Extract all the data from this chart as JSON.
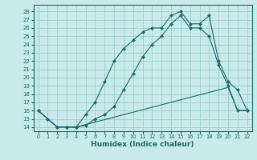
{
  "xlabel": "Humidex (Indice chaleur)",
  "background_color": "#c8eaea",
  "grid_color": "#9ecece",
  "line_color": "#1a6b6b",
  "xlim": [
    -0.5,
    22.5
  ],
  "ylim": [
    13.5,
    28.8
  ],
  "xticks": [
    0,
    1,
    2,
    3,
    4,
    5,
    6,
    7,
    8,
    9,
    10,
    11,
    12,
    13,
    14,
    15,
    16,
    17,
    18,
    19,
    20,
    21,
    22
  ],
  "yticks": [
    14,
    15,
    16,
    17,
    18,
    19,
    20,
    21,
    22,
    23,
    24,
    25,
    26,
    27,
    28
  ],
  "line1_x": [
    0,
    1,
    2,
    3,
    4,
    5,
    6,
    7,
    8,
    9,
    10,
    11,
    12,
    13,
    14,
    15,
    16,
    17,
    18,
    19,
    20,
    21,
    22
  ],
  "line1_y": [
    16,
    15,
    14,
    14,
    14,
    14.3,
    14.6,
    14.9,
    15.2,
    15.5,
    15.8,
    16.1,
    16.4,
    16.7,
    17.0,
    17.3,
    17.6,
    17.9,
    18.2,
    18.5,
    18.8,
    16,
    16
  ],
  "line2_x": [
    0,
    1,
    2,
    3,
    4,
    5,
    6,
    7,
    8,
    9,
    10,
    11,
    12,
    13,
    14,
    15,
    16,
    17,
    18,
    19,
    20,
    21,
    22
  ],
  "line2_y": [
    16,
    15,
    14,
    14,
    14,
    15.5,
    17,
    19.5,
    22,
    23.5,
    24.5,
    25.5,
    26,
    26,
    27.5,
    28.0,
    26.5,
    26.5,
    27.5,
    22,
    19.5,
    18.5,
    16
  ],
  "line3_x": [
    0,
    1,
    2,
    3,
    4,
    5,
    6,
    7,
    8,
    9,
    10,
    11,
    12,
    13,
    14,
    15,
    16,
    17,
    18,
    19,
    20,
    21,
    22
  ],
  "line3_y": [
    16,
    15,
    14,
    14,
    14,
    14.2,
    15.0,
    15.5,
    16.5,
    18.5,
    20.5,
    22.5,
    24.0,
    25.0,
    26.5,
    27.5,
    26.0,
    26.0,
    25.0,
    21.5,
    19.0,
    16,
    16
  ]
}
